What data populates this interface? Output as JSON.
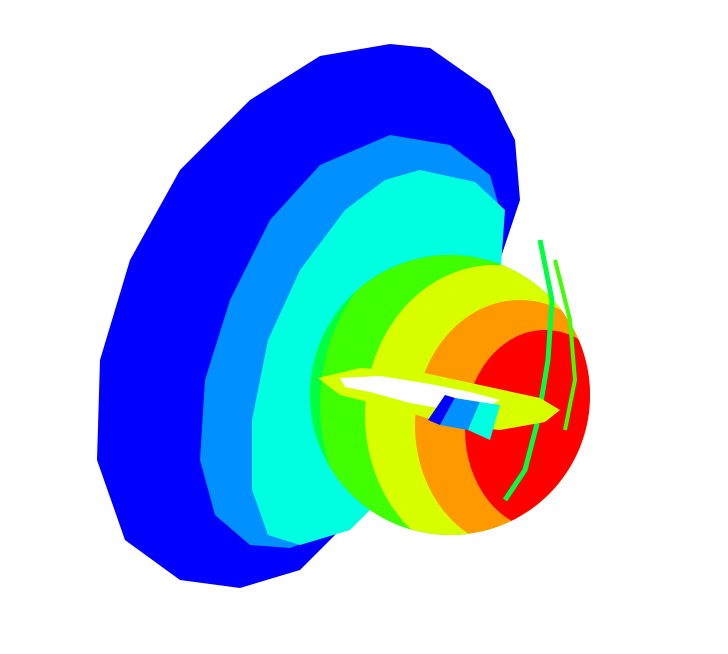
{
  "background": "#ffffff",
  "contour_colors": {
    "level_1": "#0000ff",
    "level_2": "#0090ff",
    "level_3": "#00ffe0",
    "level_4": "#00ff40",
    "level_5": "#40ff00",
    "level_6": "#d8ff00",
    "level_7": "#ff9900",
    "level_8": "#ff0000"
  },
  "slot_color": "#ffffff"
}
